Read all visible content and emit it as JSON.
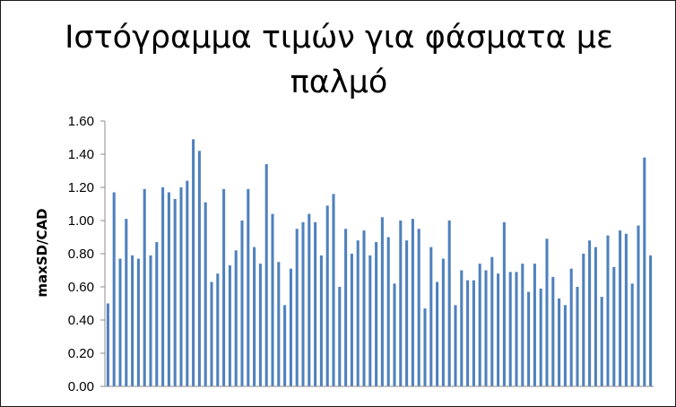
{
  "chart_data": {
    "type": "bar",
    "title": "Ιστόγραμμα τιμών για φάσματα με παλμό",
    "xlabel": "",
    "ylabel": "maxSD/CAD",
    "ylim": [
      0,
      1.6
    ],
    "ytick_step": 0.2,
    "ytick_labels": [
      "0.00",
      "0.20",
      "0.40",
      "0.60",
      "0.80",
      "1.00",
      "1.20",
      "1.40",
      "1.60"
    ],
    "grid": false,
    "legend": "none",
    "bar_color": "#4F81BD",
    "values": [
      0.5,
      1.17,
      0.77,
      1.01,
      0.79,
      0.77,
      1.19,
      0.79,
      0.87,
      1.2,
      1.17,
      1.13,
      1.2,
      1.24,
      1.49,
      1.42,
      1.11,
      0.63,
      0.68,
      1.19,
      0.73,
      0.82,
      1.0,
      1.19,
      0.84,
      0.74,
      1.34,
      1.04,
      0.75,
      0.49,
      0.71,
      0.95,
      0.99,
      1.04,
      0.99,
      0.79,
      1.09,
      1.16,
      0.6,
      0.95,
      0.8,
      0.88,
      0.94,
      0.79,
      0.87,
      1.02,
      0.9,
      0.62,
      1.0,
      0.88,
      1.01,
      0.95,
      0.47,
      0.84,
      0.63,
      0.77,
      1.0,
      0.49,
      0.7,
      0.64,
      0.64,
      0.74,
      0.7,
      0.78,
      0.68,
      0.99,
      0.69,
      0.69,
      0.74,
      0.57,
      0.74,
      0.59,
      0.89,
      0.66,
      0.53,
      0.49,
      0.71,
      0.6,
      0.8,
      0.88,
      0.84,
      0.54,
      0.91,
      0.72,
      0.94,
      0.92,
      0.62,
      0.97,
      1.38,
      0.79
    ]
  }
}
